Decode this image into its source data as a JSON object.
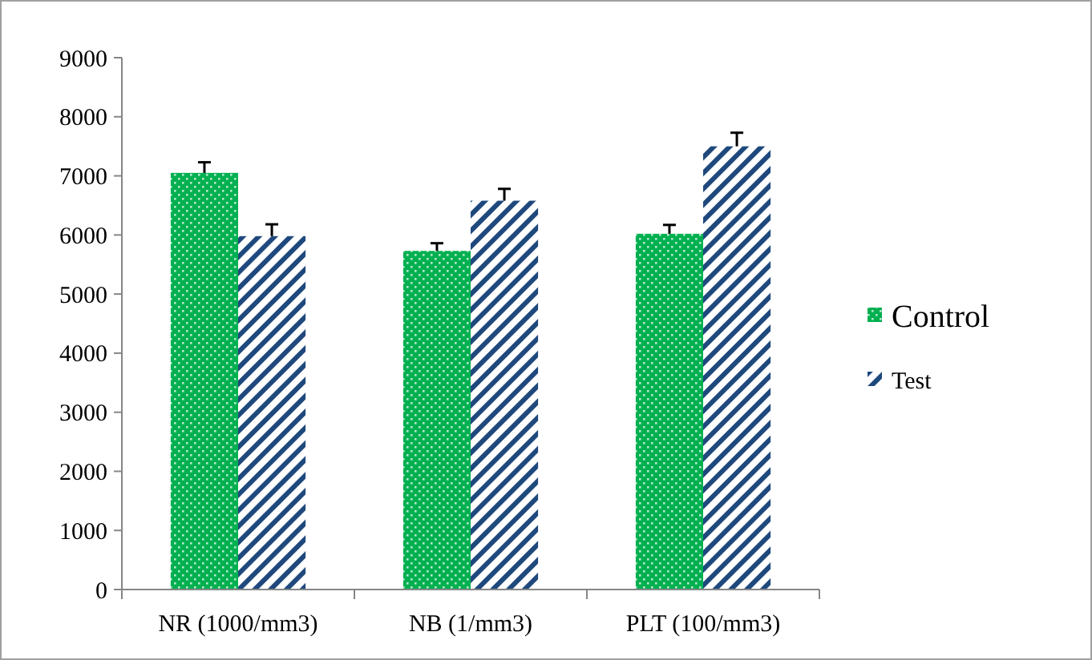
{
  "chart_data": {
    "type": "bar",
    "categories": [
      "NR (1000/mm3)",
      "NB (1/mm3)",
      "PLT (100/mm3)"
    ],
    "series": [
      {
        "name": "Control",
        "color": "#00b050",
        "values": [
          7050,
          5730,
          6020
        ],
        "errors": [
          180,
          130,
          150
        ]
      },
      {
        "name": "Test",
        "color": "#1f497d",
        "values": [
          5980,
          6580,
          7500
        ],
        "errors": [
          200,
          200,
          230
        ]
      }
    ],
    "ylim": [
      0,
      9000
    ],
    "yticks": [
      0,
      1000,
      2000,
      3000,
      4000,
      5000,
      6000,
      7000,
      8000,
      9000
    ],
    "grid": false,
    "legend": "right"
  }
}
